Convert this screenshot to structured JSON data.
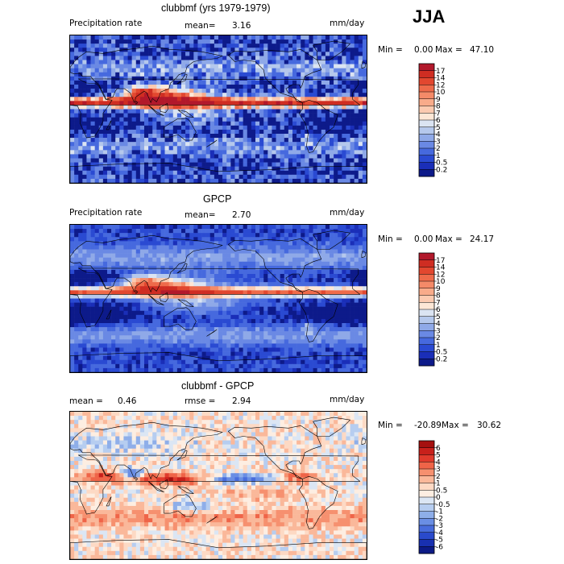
{
  "season": "JJA",
  "chart_data": [
    {
      "type": "heatmap",
      "title": "clubbmf (yrs 1979-1979)",
      "left_label": "Precipitation rate",
      "mean_label": "mean=",
      "mean_value": "3.16",
      "units": "mm/day",
      "min_label": "Min =",
      "min_value": "0.00",
      "max_label": "Max =",
      "max_value": "47.10",
      "levels": [
        "17",
        "14",
        "12",
        "10",
        "9",
        "8",
        "7",
        "6",
        "5",
        "4",
        "3",
        "2",
        "1",
        "0.5",
        "0.2"
      ],
      "colors": [
        "#b2182b",
        "#cf2d22",
        "#e2472f",
        "#ee6a4a",
        "#f48a68",
        "#f8ab8a",
        "#fbcab0",
        "#fde7d6",
        "#dbe4f2",
        "#b5c8ec",
        "#8fa9e8",
        "#6a89e4",
        "#4669de",
        "#2a4ad2",
        "#1a2eb8",
        "#0d1a8a"
      ],
      "field": "model"
    },
    {
      "type": "heatmap",
      "title": "GPCP",
      "left_label": "Precipitation rate",
      "mean_label": "mean=",
      "mean_value": "2.70",
      "units": "mm/day",
      "min_label": "Min =",
      "min_value": "0.00",
      "max_label": "Max =",
      "max_value": "24.17",
      "levels": [
        "17",
        "14",
        "12",
        "10",
        "9",
        "8",
        "7",
        "6",
        "5",
        "4",
        "3",
        "2",
        "1",
        "0.5",
        "0.2"
      ],
      "colors": [
        "#b2182b",
        "#cf2d22",
        "#e2472f",
        "#ee6a4a",
        "#f48a68",
        "#f8ab8a",
        "#fbcab0",
        "#fde7d6",
        "#dbe4f2",
        "#b5c8ec",
        "#8fa9e8",
        "#6a89e4",
        "#4669de",
        "#2a4ad2",
        "#1a2eb8",
        "#0d1a8a"
      ],
      "field": "obs"
    },
    {
      "type": "heatmap",
      "title": "clubbmf - GPCP",
      "mean_label": "mean =",
      "mean_value": "0.46",
      "rmse_label": "rmse =",
      "rmse_value": "2.94",
      "units": "mm/day",
      "min_label": "Min =",
      "min_value": "-20.89",
      "max_label": "Max =",
      "max_value": "30.62",
      "levels": [
        "6",
        "5",
        "4",
        "3",
        "2",
        "1",
        "0.5",
        "0",
        "-0.5",
        "-1",
        "-2",
        "-3",
        "-4",
        "-5",
        "-6"
      ],
      "colors": [
        "#a5100f",
        "#c8201b",
        "#e03a2c",
        "#ef6448",
        "#f6906f",
        "#fab89a",
        "#fdd9c4",
        "#fdeee2",
        "#dbe6f4",
        "#b6cdf0",
        "#8eaee9",
        "#6a8ee4",
        "#486cdc",
        "#2a4acc",
        "#1830b0",
        "#0c1a86"
      ],
      "field": "diff"
    }
  ]
}
